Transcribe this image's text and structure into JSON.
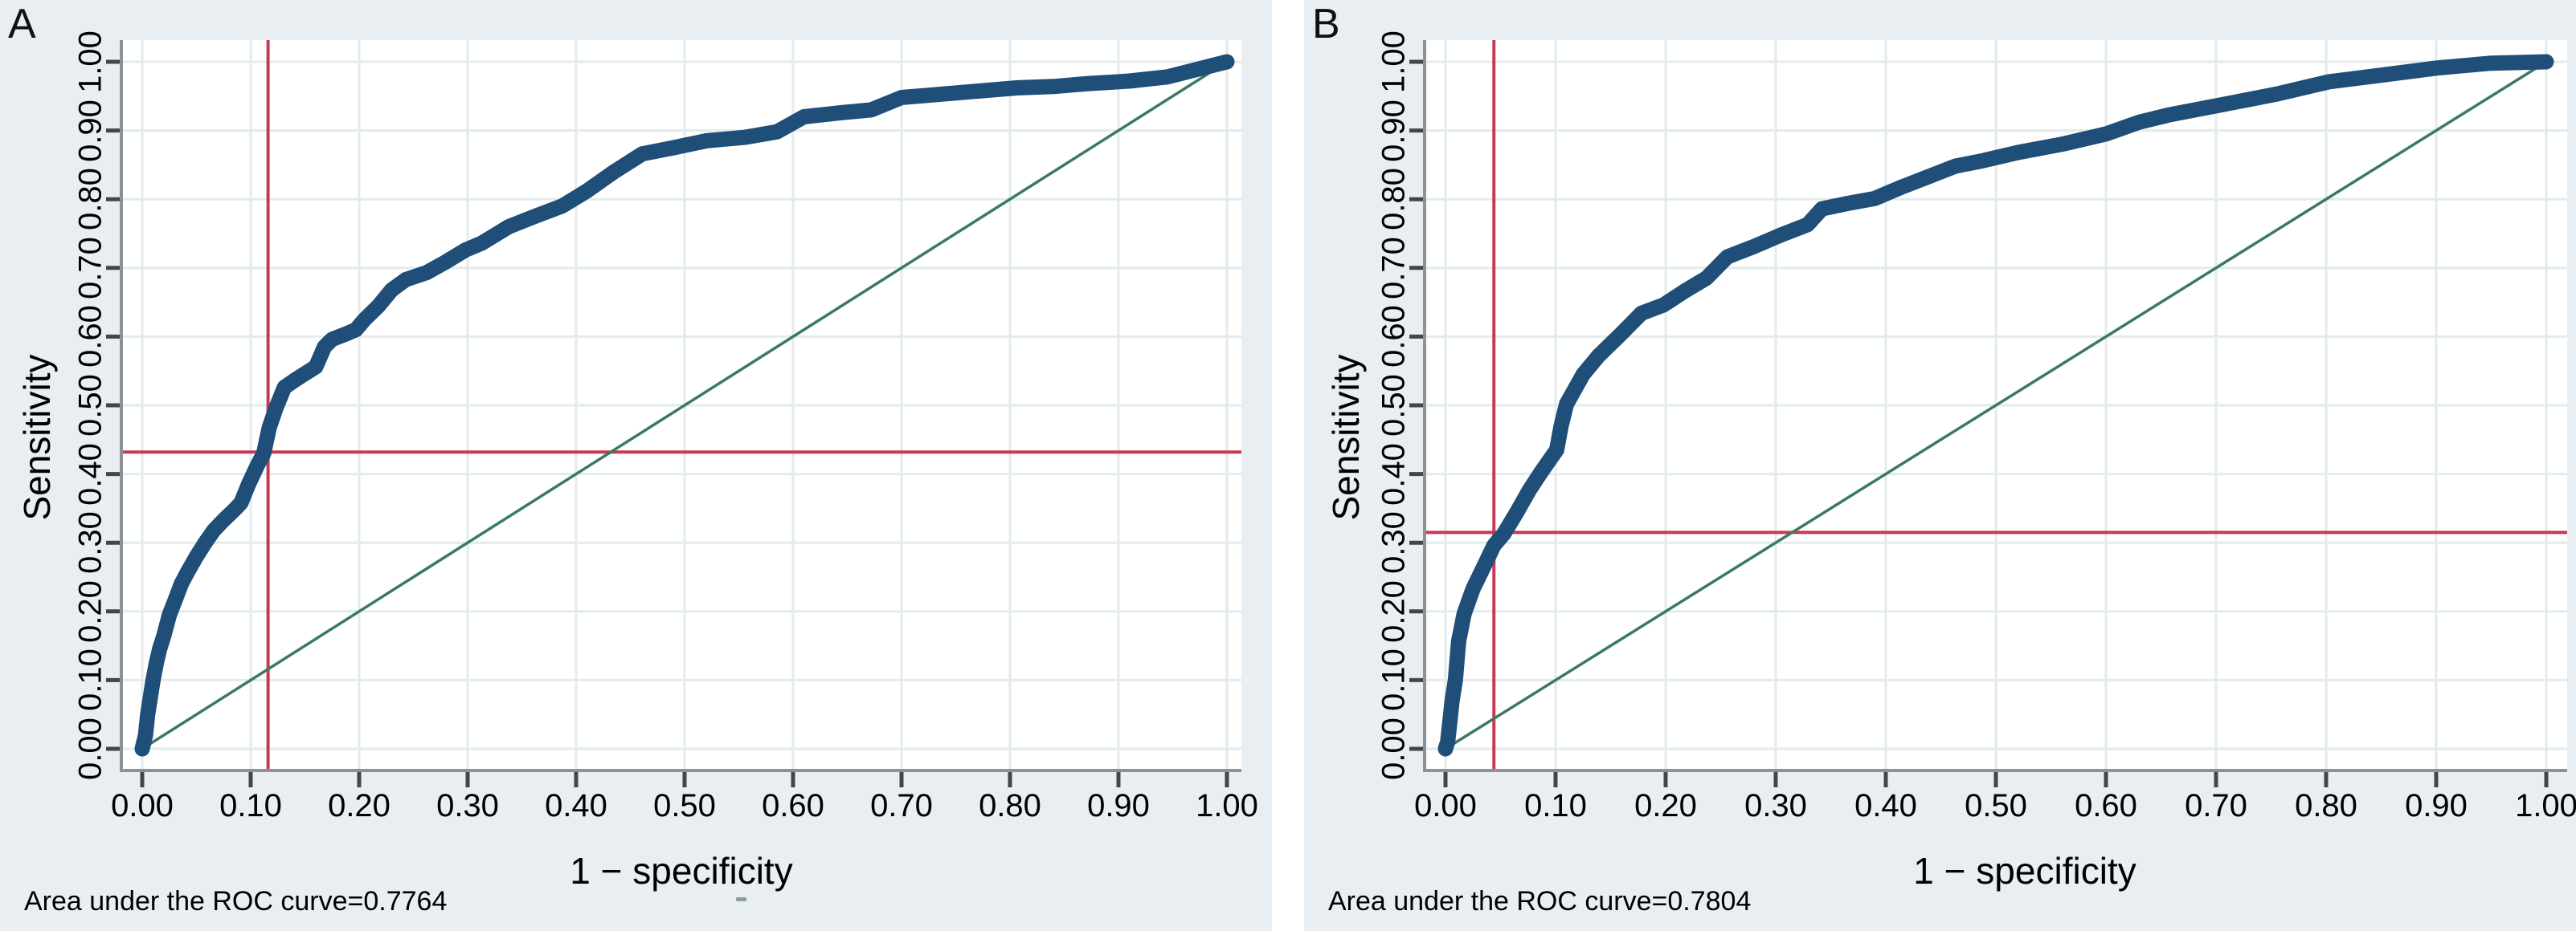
{
  "figure": {
    "panels": [
      {
        "panel_label": "A",
        "y_axis_title": "Sensitivity",
        "x_axis_title": "1 − specificity",
        "auc_note": "Area under the ROC curve=0.7764"
      },
      {
        "panel_label": "B",
        "y_axis_title": "Sensitivity",
        "x_axis_title": "1 − specificity",
        "auc_note": "Area under the ROC curve=0.7804"
      }
    ]
  },
  "colors": {
    "panel_background": "#e8eef1",
    "plot_background": "#ffffff",
    "gridline": "#e2ebee",
    "axis_line": "#8c9196",
    "tick_mark": "#40464c",
    "roc_curve": "#1f4e78",
    "reference_line": "#3a7a60",
    "cutoff_line": "#c83a52"
  },
  "chart_data": [
    {
      "type": "line",
      "title": "A",
      "xlabel": "1 − specificity",
      "ylabel": "Sensitivity",
      "xlim": [
        0,
        1
      ],
      "ylim": [
        0,
        1
      ],
      "grid": true,
      "legend": "none",
      "annotation": "Area under the ROC curve=0.7764",
      "auc": 0.7764,
      "tick_values": [
        0,
        0.1,
        0.2,
        0.3,
        0.4,
        0.5,
        0.6,
        0.7,
        0.8,
        0.9,
        1.0
      ],
      "x_tick_labels": [
        "0.00",
        "0.10",
        "0.20",
        "0.30",
        "0.40",
        "0.50",
        "0.60",
        "0.70",
        "0.80",
        "0.90",
        "1.00"
      ],
      "y_tick_labels": [
        "0.00",
        "0.10",
        "0.20",
        "0.30",
        "0.40",
        "0.50",
        "0.60",
        "0.70",
        "0.80",
        "0.90",
        "1.00"
      ],
      "cutoff_point": {
        "x": 0.116,
        "y": 0.432
      },
      "series": [
        {
          "name": "ROC curve",
          "color": "#1f4e78",
          "stroke_width": 19,
          "points": [
            [
              0,
              0
            ],
            [
              0.003,
              0.02
            ],
            [
              0.005,
              0.05
            ],
            [
              0.008,
              0.08
            ],
            [
              0.01,
              0.1
            ],
            [
              0.013,
              0.125
            ],
            [
              0.016,
              0.145
            ],
            [
              0.02,
              0.165
            ],
            [
              0.025,
              0.195
            ],
            [
              0.03,
              0.215
            ],
            [
              0.036,
              0.24
            ],
            [
              0.042,
              0.258
            ],
            [
              0.05,
              0.28
            ],
            [
              0.058,
              0.3
            ],
            [
              0.066,
              0.318
            ],
            [
              0.075,
              0.333
            ],
            [
              0.085,
              0.348
            ],
            [
              0.091,
              0.358
            ],
            [
              0.098,
              0.385
            ],
            [
              0.106,
              0.412
            ],
            [
              0.112,
              0.43
            ],
            [
              0.117,
              0.467
            ],
            [
              0.123,
              0.495
            ],
            [
              0.131,
              0.526
            ],
            [
              0.141,
              0.537
            ],
            [
              0.152,
              0.548
            ],
            [
              0.16,
              0.556
            ],
            [
              0.168,
              0.585
            ],
            [
              0.175,
              0.596
            ],
            [
              0.188,
              0.604
            ],
            [
              0.197,
              0.61
            ],
            [
              0.205,
              0.625
            ],
            [
              0.218,
              0.645
            ],
            [
              0.23,
              0.668
            ],
            [
              0.243,
              0.683
            ],
            [
              0.262,
              0.693
            ],
            [
              0.279,
              0.708
            ],
            [
              0.298,
              0.726
            ],
            [
              0.313,
              0.736
            ],
            [
              0.338,
              0.76
            ],
            [
              0.362,
              0.775
            ],
            [
              0.387,
              0.79
            ],
            [
              0.41,
              0.812
            ],
            [
              0.435,
              0.84
            ],
            [
              0.461,
              0.866
            ],
            [
              0.49,
              0.875
            ],
            [
              0.52,
              0.885
            ],
            [
              0.555,
              0.89
            ],
            [
              0.585,
              0.898
            ],
            [
              0.61,
              0.92
            ],
            [
              0.645,
              0.926
            ],
            [
              0.672,
              0.93
            ],
            [
              0.7,
              0.948
            ],
            [
              0.76,
              0.956
            ],
            [
              0.806,
              0.962
            ],
            [
              0.84,
              0.964
            ],
            [
              0.87,
              0.968
            ],
            [
              0.91,
              0.972
            ],
            [
              0.945,
              0.978
            ],
            [
              0.97,
              0.988
            ],
            [
              1,
              1
            ]
          ]
        },
        {
          "name": "Reference diagonal",
          "color": "#3a7a60",
          "stroke_width": 3.5,
          "points": [
            [
              0,
              0
            ],
            [
              1,
              1
            ]
          ]
        }
      ]
    },
    {
      "type": "line",
      "title": "B",
      "xlabel": "1 − specificity",
      "ylabel": "Sensitivity",
      "xlim": [
        0,
        1
      ],
      "ylim": [
        0,
        1
      ],
      "grid": true,
      "legend": "none",
      "annotation": "Area under the ROC curve=0.7804",
      "auc": 0.7804,
      "tick_values": [
        0,
        0.1,
        0.2,
        0.3,
        0.4,
        0.5,
        0.6,
        0.7,
        0.8,
        0.9,
        1.0
      ],
      "x_tick_labels": [
        "0.00",
        "0.10",
        "0.20",
        "0.30",
        "0.40",
        "0.50",
        "0.60",
        "0.70",
        "0.80",
        "0.90",
        "1.00"
      ],
      "y_tick_labels": [
        "0.00",
        "0.10",
        "0.20",
        "0.30",
        "0.40",
        "0.50",
        "0.60",
        "0.70",
        "0.80",
        "0.90",
        "1.00"
      ],
      "cutoff_point": {
        "x": 0.044,
        "y": 0.315
      },
      "series": [
        {
          "name": "ROC curve",
          "color": "#1f4e78",
          "stroke_width": 19,
          "points": [
            [
              0,
              0
            ],
            [
              0.002,
              0.01
            ],
            [
              0.004,
              0.04
            ],
            [
              0.006,
              0.07
            ],
            [
              0.009,
              0.1
            ],
            [
              0.012,
              0.157
            ],
            [
              0.017,
              0.197
            ],
            [
              0.025,
              0.233
            ],
            [
              0.036,
              0.269
            ],
            [
              0.044,
              0.296
            ],
            [
              0.053,
              0.313
            ],
            [
              0.065,
              0.345
            ],
            [
              0.076,
              0.376
            ],
            [
              0.087,
              0.403
            ],
            [
              0.101,
              0.435
            ],
            [
              0.105,
              0.47
            ],
            [
              0.11,
              0.502
            ],
            [
              0.125,
              0.545
            ],
            [
              0.139,
              0.572
            ],
            [
              0.159,
              0.603
            ],
            [
              0.178,
              0.634
            ],
            [
              0.198,
              0.646
            ],
            [
              0.217,
              0.666
            ],
            [
              0.237,
              0.685
            ],
            [
              0.256,
              0.716
            ],
            [
              0.28,
              0.731
            ],
            [
              0.305,
              0.748
            ],
            [
              0.329,
              0.763
            ],
            [
              0.342,
              0.786
            ],
            [
              0.366,
              0.794
            ],
            [
              0.39,
              0.801
            ],
            [
              0.415,
              0.818
            ],
            [
              0.439,
              0.833
            ],
            [
              0.463,
              0.848
            ],
            [
              0.488,
              0.856
            ],
            [
              0.52,
              0.868
            ],
            [
              0.56,
              0.88
            ],
            [
              0.6,
              0.895
            ],
            [
              0.63,
              0.912
            ],
            [
              0.658,
              0.923
            ],
            [
              0.707,
              0.938
            ],
            [
              0.755,
              0.953
            ],
            [
              0.803,
              0.971
            ],
            [
              0.852,
              0.981
            ],
            [
              0.901,
              0.991
            ],
            [
              0.95,
              0.998
            ],
            [
              1,
              1
            ]
          ]
        },
        {
          "name": "Reference diagonal",
          "color": "#3a7a60",
          "stroke_width": 3.5,
          "points": [
            [
              0,
              0
            ],
            [
              1,
              1
            ]
          ]
        }
      ]
    }
  ]
}
